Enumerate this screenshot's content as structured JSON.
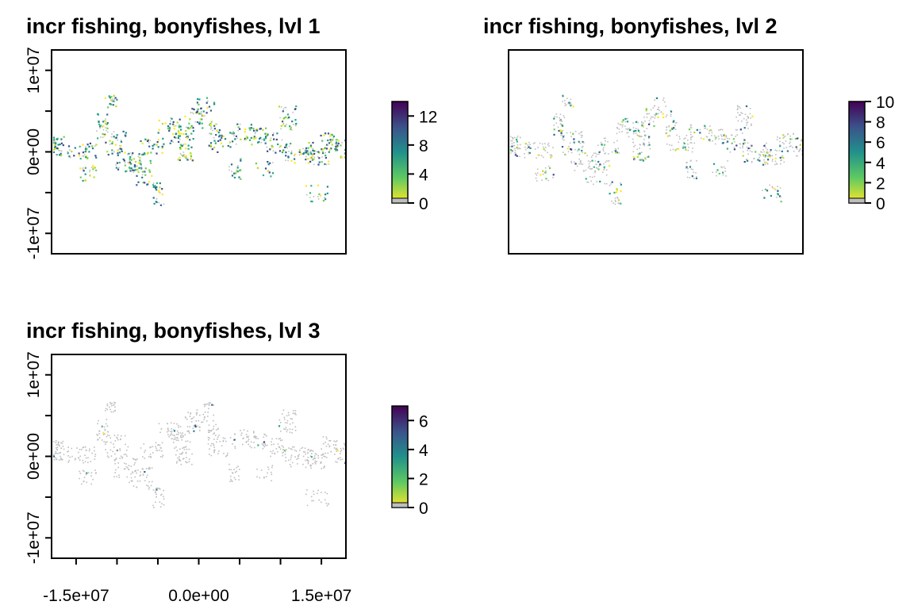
{
  "figure_title": "",
  "chart_data": [
    {
      "type": "heatmap",
      "title": "incr fishing, bonyfishes, lvl 1",
      "xlabel": "",
      "ylabel": "",
      "y_ticks": [
        "1e+07",
        "0e+00",
        "-1e+07"
      ],
      "y_tick_values": [
        10000000,
        0,
        -10000000
      ],
      "x_ticks": [],
      "x_range": [
        -18000000,
        18000000
      ],
      "y_range": [
        -12500000,
        12500000
      ],
      "legend": {
        "min": 0,
        "max": 14,
        "labels": [
          "0",
          "4",
          "8",
          "12"
        ],
        "label_values": [
          0,
          4,
          8,
          12
        ],
        "placement": "right"
      },
      "colormap": "viridis (reversed)",
      "no_change_color": "#bebebe",
      "grid": false
    },
    {
      "type": "heatmap",
      "title": "incr fishing, bonyfishes, lvl 2",
      "xlabel": "",
      "ylabel": "",
      "y_ticks": [],
      "x_ticks": [],
      "x_range": [
        -18000000,
        18000000
      ],
      "y_range": [
        -12500000,
        12500000
      ],
      "legend": {
        "min": 0,
        "max": 10,
        "labels": [
          "0",
          "2",
          "4",
          "6",
          "8",
          "10"
        ],
        "label_values": [
          0,
          2,
          4,
          6,
          8,
          10
        ],
        "placement": "right"
      },
      "colormap": "viridis (reversed)",
      "no_change_color": "#bebebe",
      "grid": false
    },
    {
      "type": "heatmap",
      "title": "incr fishing, bonyfishes, lvl 3",
      "xlabel": "",
      "ylabel": "",
      "y_ticks": [
        "1e+07",
        "0e+00",
        "-1e+07"
      ],
      "y_tick_values": [
        10000000,
        0,
        -10000000
      ],
      "x_ticks": [
        "-1.5e+07",
        "0.0e+00",
        "1.5e+07"
      ],
      "x_tick_values": [
        -15000000,
        0,
        15000000
      ],
      "x_range": [
        -18000000,
        18000000
      ],
      "y_range": [
        -12500000,
        12500000
      ],
      "legend": {
        "min": 0,
        "max": 7,
        "labels": [
          "0",
          "2",
          "4",
          "6"
        ],
        "label_values": [
          0,
          2,
          4,
          6
        ],
        "placement": "right"
      },
      "colormap": "viridis (reversed)",
      "no_change_color": "#bebebe",
      "grid": false
    }
  ]
}
